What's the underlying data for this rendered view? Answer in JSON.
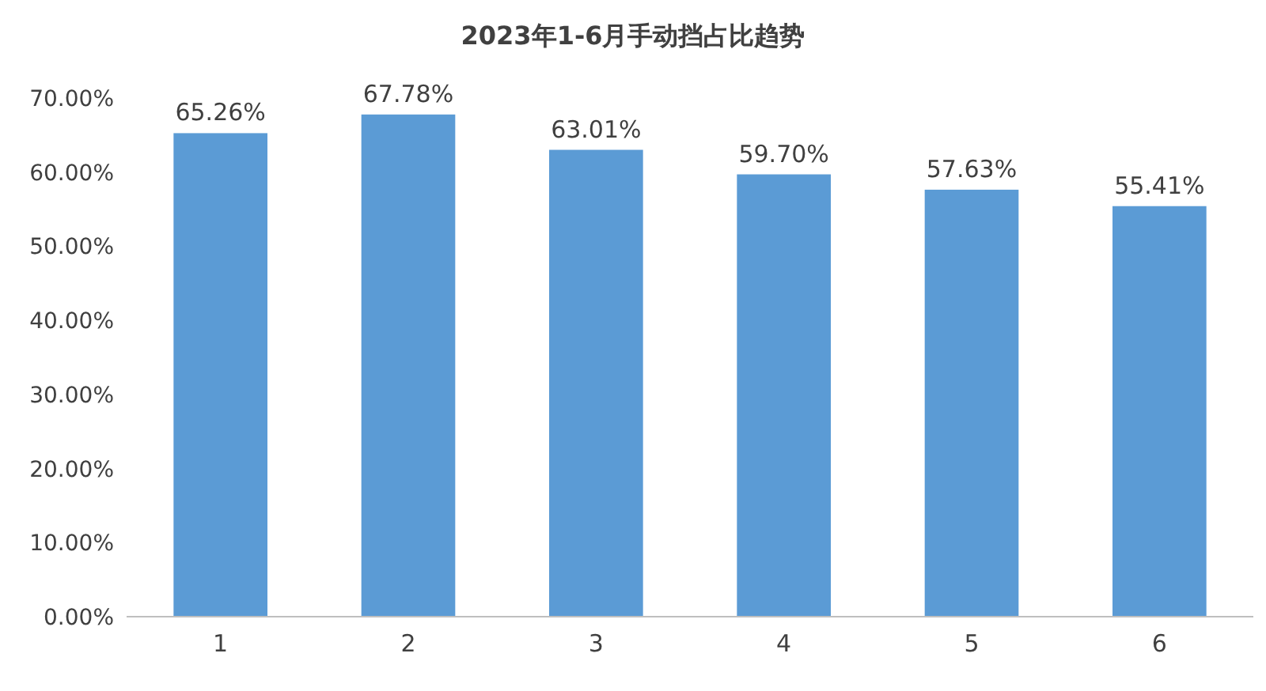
{
  "chart_data": {
    "type": "bar",
    "title": "2023年1-6月手动挡占比趋势",
    "categories": [
      "1",
      "2",
      "3",
      "4",
      "5",
      "6"
    ],
    "values": [
      65.26,
      67.78,
      63.01,
      59.7,
      57.63,
      55.41
    ],
    "value_labels": [
      "65.26%",
      "67.78%",
      "63.01%",
      "59.70%",
      "57.63%",
      "55.41%"
    ],
    "color": "#5b9bd5",
    "ylim": [
      0,
      70
    ],
    "yticks": [
      {
        "value": 0,
        "label": "0.00%"
      },
      {
        "value": 10,
        "label": "10.00%"
      },
      {
        "value": 20,
        "label": "20.00%"
      },
      {
        "value": 30,
        "label": "30.00%"
      },
      {
        "value": 40,
        "label": "40.00%"
      },
      {
        "value": 50,
        "label": "50.00%"
      },
      {
        "value": 60,
        "label": "60.00%"
      },
      {
        "value": 70,
        "label": "70.00%"
      }
    ],
    "grid": false
  }
}
